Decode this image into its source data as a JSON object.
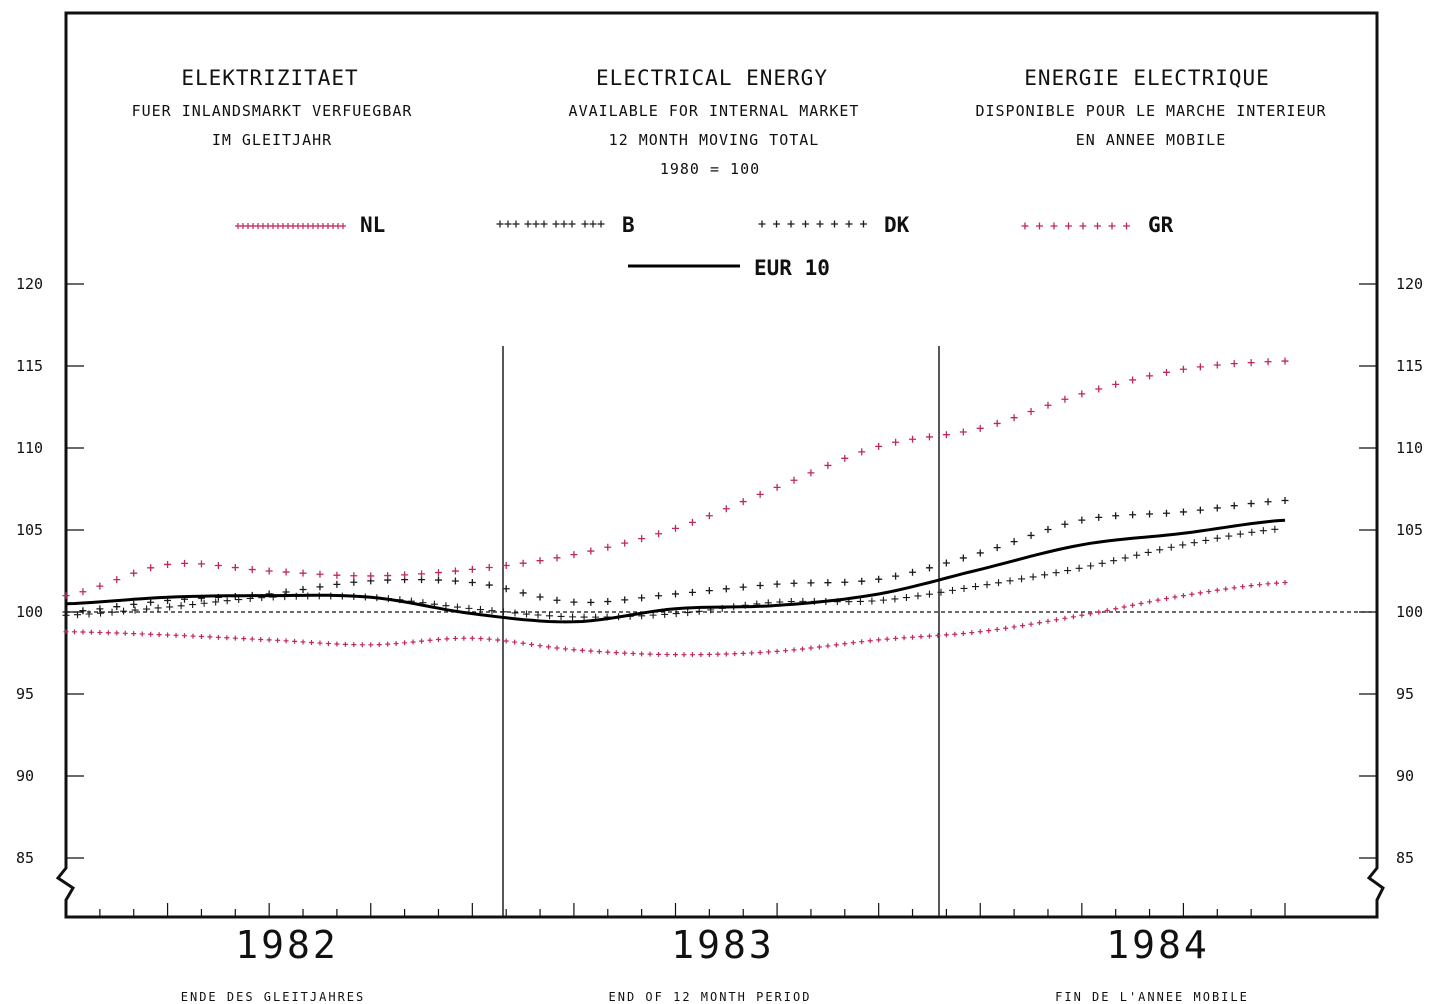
{
  "chart_data": {
    "type": "line",
    "titles": [
      {
        "title": "ELEKTRIZITAET",
        "lines": [
          "FUER INLANDSMARKT VERFUEGBAR",
          "IM GLEITJAHR"
        ]
      },
      {
        "title": "ELECTRICAL ENERGY",
        "lines": [
          "AVAILABLE FOR INTERNAL MARKET",
          "12 MONTH MOVING TOTAL",
          "1980 = 100"
        ]
      },
      {
        "title": "ENERGIE ELECTRIQUE",
        "lines": [
          "DISPONIBLE POUR LE MARCHE INTERIEUR",
          "EN ANNEE MOBILE"
        ]
      }
    ],
    "y_ticks": [
      120,
      115,
      110,
      105,
      100,
      95,
      90,
      85
    ],
    "ylim": [
      85,
      120
    ],
    "reference_value": 100,
    "years": [
      "1982",
      "1983",
      "1984"
    ],
    "footer": [
      "ENDE DES GLEITJAHRES",
      "END OF 12 MONTH PERIOD",
      "FIN DE L'ANNEE MOBILE"
    ],
    "x": [
      0,
      3,
      6,
      9,
      12,
      15,
      18,
      21,
      24,
      27,
      30,
      33,
      36
    ],
    "series": [
      {
        "name": "NL",
        "color": "#c0285a",
        "style": "dense-plus",
        "values": [
          98.8,
          98.6,
          98.3,
          98.0,
          98.4,
          97.7,
          97.4,
          97.6,
          98.3,
          98.8,
          99.8,
          101.0,
          101.8
        ]
      },
      {
        "name": "B",
        "color": "#1a1a1a",
        "style": "grouped-plus",
        "values": [
          99.8,
          100.3,
          100.9,
          100.9,
          100.2,
          99.7,
          99.9,
          100.6,
          100.7,
          101.6,
          102.7,
          104.1,
          105.1
        ]
      },
      {
        "name": "DK",
        "color": "#1a1a1a",
        "style": "sparse-plus",
        "values": [
          100.0,
          100.7,
          101.1,
          101.9,
          101.8,
          100.6,
          101.1,
          101.7,
          102.0,
          103.6,
          105.6,
          106.1,
          106.8
        ]
      },
      {
        "name": "GR",
        "color": "#c0285a",
        "style": "sparse-plus",
        "values": [
          101.0,
          102.9,
          102.5,
          102.2,
          102.6,
          103.5,
          105.1,
          107.6,
          110.1,
          111.2,
          113.3,
          114.8,
          115.3
        ]
      },
      {
        "name": "EUR 10",
        "color": "#000000",
        "style": "solid",
        "values": [
          100.5,
          100.9,
          101.0,
          100.9,
          99.9,
          99.4,
          100.2,
          100.4,
          101.1,
          102.6,
          104.1,
          104.8,
          105.6
        ]
      }
    ]
  }
}
